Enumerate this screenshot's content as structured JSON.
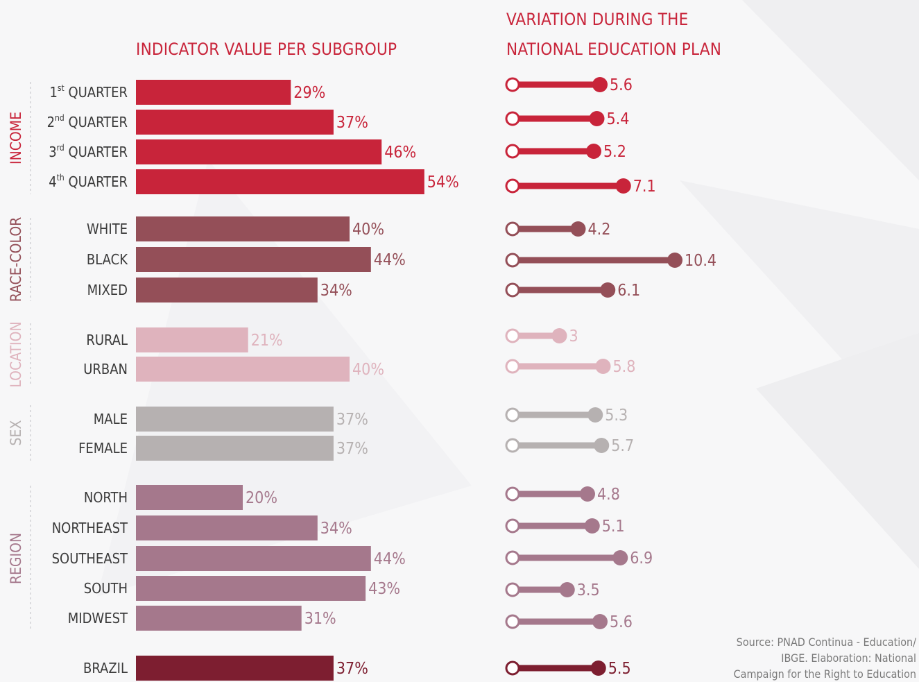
{
  "titles": {
    "left": "INDICATOR VALUE PER SUBGROUP",
    "right_line1": "VARIATION DURING THE",
    "right_line2": "NATIONAL EDUCATION PLAN"
  },
  "source": {
    "line1": "Source: PNAD Continua - Education/",
    "line2": "IBGE. Elaboration: National",
    "line3": "Campaign for the Right to Education"
  },
  "colors": {
    "income": "#c8243a",
    "race_color": "#944f58",
    "location": "#dfb3bd",
    "sex": "#b6b1b1",
    "region": "#a5788c",
    "brazil": "#7d1e30"
  },
  "chart_data": [
    {
      "type": "bar",
      "title": "INDICATOR VALUE PER SUBGROUP",
      "unit": "%",
      "groups": [
        {
          "name": "INCOME",
          "color": "#c8243a",
          "rows": [
            {
              "label": "1",
              "sup": "st",
              "suffix": " QUARTER",
              "value": 29
            },
            {
              "label": "2",
              "sup": "nd",
              "suffix": " QUARTER",
              "value": 37
            },
            {
              "label": "3",
              "sup": "rd",
              "suffix": " QUARTER",
              "value": 46
            },
            {
              "label": "4",
              "sup": "th",
              "suffix": " QUARTER",
              "value": 54
            }
          ]
        },
        {
          "name": "RACE-COLOR",
          "color": "#944f58",
          "rows": [
            {
              "label": "WHITE",
              "value": 40
            },
            {
              "label": "BLACK",
              "value": 44
            },
            {
              "label": "MIXED",
              "value": 34
            }
          ]
        },
        {
          "name": "LOCATION",
          "color": "#dfb3bd",
          "rows": [
            {
              "label": "RURAL",
              "value": 21
            },
            {
              "label": "URBAN",
              "value": 40
            }
          ]
        },
        {
          "name": "SEX",
          "color": "#b6b1b1",
          "rows": [
            {
              "label": "MALE",
              "value": 37
            },
            {
              "label": "FEMALE",
              "value": 37
            }
          ]
        },
        {
          "name": "REGION",
          "color": "#a5788c",
          "rows": [
            {
              "label": "NORTH",
              "value": 20
            },
            {
              "label": "NORTHEAST",
              "value": 34
            },
            {
              "label": "SOUTHEAST",
              "value": 44
            },
            {
              "label": "SOUTH",
              "value": 43
            },
            {
              "label": "MIDWEST",
              "value": 31
            }
          ]
        },
        {
          "name": "",
          "color": "#7d1e30",
          "rows": [
            {
              "label": "BRAZIL",
              "value": 37
            }
          ]
        }
      ]
    },
    {
      "type": "dumbbell",
      "title": "VARIATION DURING THE NATIONAL EDUCATION PLAN",
      "groups": [
        {
          "name": "INCOME",
          "values": [
            "5.6",
            "5.4",
            "5.2",
            "7.1"
          ]
        },
        {
          "name": "RACE-COLOR",
          "values": [
            "4.2",
            "10.4",
            "6.1"
          ]
        },
        {
          "name": "LOCATION",
          "values": [
            "3",
            "5.8"
          ]
        },
        {
          "name": "SEX",
          "values": [
            "5.3",
            "5.7"
          ]
        },
        {
          "name": "REGION",
          "values": [
            "4.8",
            "5.1",
            "6.9",
            "3.5",
            "5.6"
          ]
        },
        {
          "name": "",
          "values": [
            "5.5"
          ]
        }
      ]
    }
  ]
}
